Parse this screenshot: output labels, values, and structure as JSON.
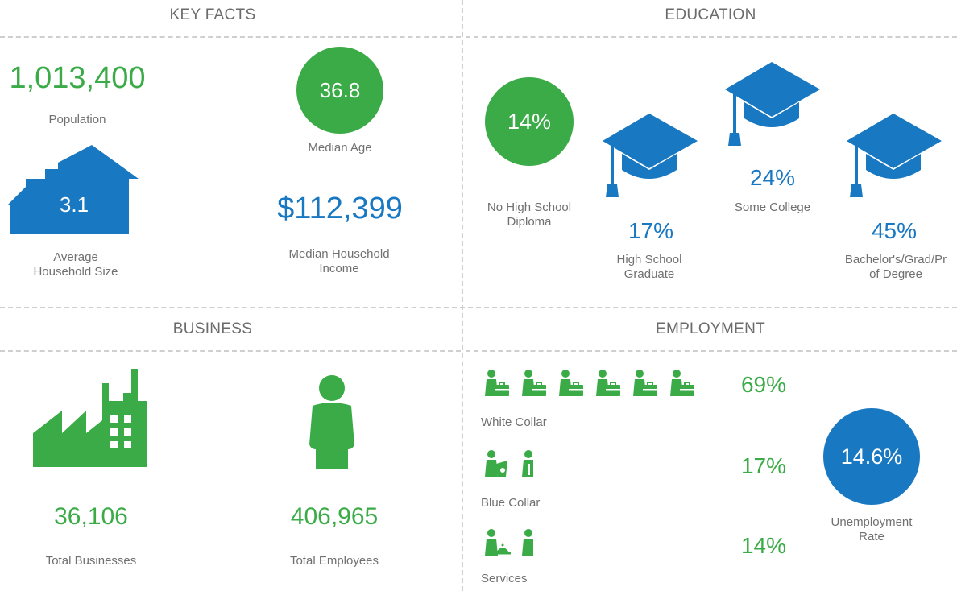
{
  "colors": {
    "green": "#3aab47",
    "blue": "#1878c2",
    "text": "#707070",
    "divider": "#cfcfcf"
  },
  "key_facts": {
    "title": "KEY FACTS",
    "population_value": "1,013,400",
    "population_label": "Population",
    "median_age_value": "36.8",
    "median_age_label": "Median Age",
    "household_size_value": "3.1",
    "household_size_label_1": "Average",
    "household_size_label_2": "Household Size",
    "income_value": "$112,399",
    "income_label_1": "Median Household",
    "income_label_2": "Income"
  },
  "education": {
    "title": "EDUCATION",
    "no_hs_value": "14%",
    "no_hs_label_1": "No High School",
    "no_hs_label_2": "Diploma",
    "hs_value": "17%",
    "hs_label_1": "High School",
    "hs_label_2": "Graduate",
    "college_value": "24%",
    "college_label": "Some College",
    "bachelor_value": "45%",
    "bachelor_label_1": "Bachelor's/Grad/Pr",
    "bachelor_label_2": "of Degree"
  },
  "business": {
    "title": "BUSINESS",
    "businesses_value": "36,106",
    "businesses_label": "Total Businesses",
    "employees_value": "406,965",
    "employees_label": "Total Employees"
  },
  "employment": {
    "title": "EMPLOYMENT",
    "rows": [
      {
        "label": "White Collar",
        "value": "69%",
        "fraction": 0.69
      },
      {
        "label": "Blue Collar",
        "value": "17%",
        "fraction": 0.17
      },
      {
        "label": "Services",
        "value": "14%",
        "fraction": 0.14
      }
    ],
    "unemployment_value": "14.6%",
    "unemployment_label_1": "Unemployment",
    "unemployment_label_2": "Rate"
  }
}
